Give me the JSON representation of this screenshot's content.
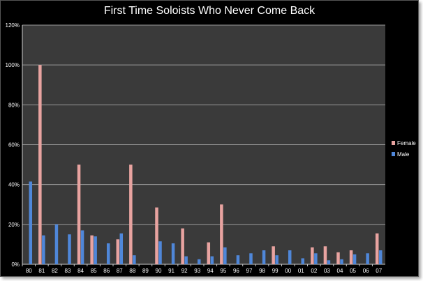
{
  "chart_data": {
    "type": "bar",
    "title": "First Time Soloists Who Never Come Back",
    "xlabel": "",
    "ylabel": "",
    "ylim": [
      0,
      120
    ],
    "y_ticks": [
      "0%",
      "20%",
      "40%",
      "60%",
      "80%",
      "100%",
      "120%"
    ],
    "grid": true,
    "legend_position": "right",
    "categories": [
      "80",
      "81",
      "82",
      "83",
      "84",
      "85",
      "86",
      "87",
      "88",
      "89",
      "90",
      "91",
      "92",
      "93",
      "94",
      "95",
      "96",
      "97",
      "98",
      "99",
      "00",
      "01",
      "02",
      "03",
      "04",
      "05",
      "06",
      "07"
    ],
    "series": [
      {
        "name": "Female",
        "color": "#e8a3a0",
        "values": [
          0,
          100,
          0,
          0,
          50,
          14.5,
          0,
          12.5,
          50,
          0,
          28.5,
          0,
          18,
          0,
          11,
          30,
          0,
          0,
          0,
          9,
          0,
          0,
          8.5,
          9,
          6,
          7,
          0,
          15.5
        ]
      },
      {
        "name": "Male",
        "color": "#4f87d9",
        "values": [
          41.5,
          14.5,
          20,
          15,
          17,
          14,
          10.5,
          15.5,
          4.5,
          0,
          11.5,
          10.5,
          4,
          2.5,
          4,
          8.5,
          4.5,
          5.5,
          7,
          4.5,
          7,
          3,
          5.5,
          2,
          2.5,
          5,
          5.5,
          7
        ]
      }
    ]
  },
  "colors": {
    "background": "#000000",
    "plot_area": "#3a3a3a",
    "grid": "#9a9a9a",
    "text": "#ffffff"
  }
}
